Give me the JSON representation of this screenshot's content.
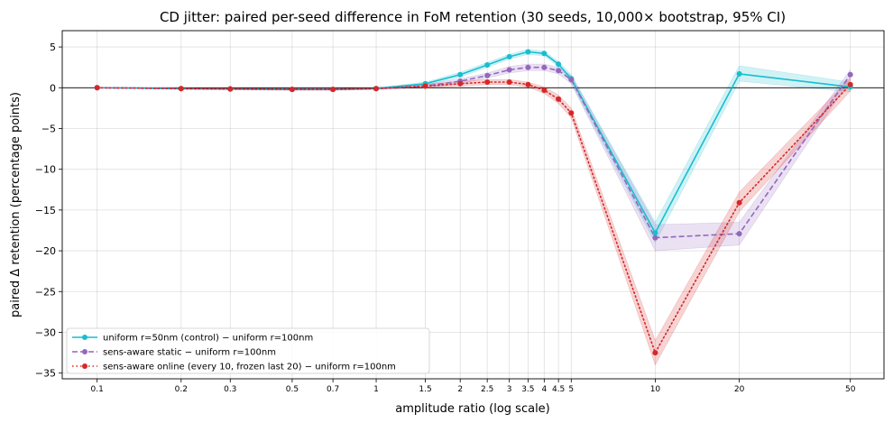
{
  "chart_data": {
    "type": "line",
    "title": "CD jitter: paired per-seed difference in FoM retention (30 seeds, 10,000× bootstrap, 95% CI)",
    "xlabel": "amplitude ratio (log scale)",
    "ylabel": "paired Δ retention (percentage points)",
    "x_scale": "log",
    "xlim": [
      0.075,
      66
    ],
    "ylim": [
      -35.7,
      7.0
    ],
    "grid": true,
    "legend_position": "lower-left",
    "x_ticks": [
      0.1,
      0.2,
      0.3,
      0.5,
      0.7,
      1,
      1.5,
      2,
      2.5,
      3,
      3.5,
      4,
      4.5,
      5,
      10,
      20,
      50
    ],
    "x_tick_labels": [
      "0.1",
      "0.2",
      "0.3",
      "0.5",
      "0.7",
      "1",
      "1.5",
      "2",
      "2.5",
      "3",
      "3.5",
      "4",
      "4.5",
      "5",
      "10",
      "20",
      "50"
    ],
    "y_ticks": [
      5,
      0,
      -5,
      -10,
      -15,
      -20,
      -25,
      -30,
      -35
    ],
    "y_tick_labels": [
      "5",
      "0",
      "−5",
      "−10",
      "−15",
      "−20",
      "−25",
      "−30",
      "−35"
    ],
    "reference_line": 0,
    "x": [
      0.1,
      0.2,
      0.3,
      0.5,
      0.7,
      1,
      1.5,
      2,
      2.5,
      3,
      3.5,
      4,
      4.5,
      5,
      10,
      20,
      50
    ],
    "series": [
      {
        "name": "uniform r=50nm (control) − uniform r=100nm",
        "color": "#17becf",
        "style": "solid",
        "values": [
          0,
          -0.1,
          -0.15,
          -0.2,
          -0.2,
          -0.1,
          0.5,
          1.6,
          2.8,
          3.8,
          4.4,
          4.2,
          2.9,
          1.1,
          -17.8,
          1.7,
          0.1
        ],
        "ci_low": [
          0,
          -0.2,
          -0.25,
          -0.3,
          -0.3,
          -0.2,
          0.3,
          1.3,
          2.5,
          3.5,
          4.1,
          3.9,
          2.6,
          0.6,
          -19.0,
          0.8,
          -0.5
        ],
        "ci_high": [
          0,
          0,
          -0.05,
          -0.1,
          -0.1,
          0,
          0.7,
          1.9,
          3.1,
          4.1,
          4.7,
          4.5,
          3.2,
          1.6,
          -16.5,
          2.7,
          0.7
        ]
      },
      {
        "name": "sens-aware static − uniform r=100nm",
        "color": "#9467bd",
        "style": "dashed",
        "values": [
          0,
          -0.1,
          -0.15,
          -0.2,
          -0.2,
          -0.1,
          0.2,
          0.8,
          1.5,
          2.2,
          2.5,
          2.5,
          2.1,
          1.0,
          -18.4,
          -17.9,
          1.6
        ],
        "ci_low": [
          0,
          -0.2,
          -0.25,
          -0.3,
          -0.3,
          -0.2,
          0,
          0.5,
          1.2,
          1.8,
          2.1,
          2.1,
          1.7,
          0.5,
          -20.0,
          -19.3,
          1.0
        ],
        "ci_high": [
          0,
          0,
          -0.05,
          -0.1,
          -0.1,
          0,
          0.4,
          1.1,
          1.8,
          2.6,
          2.9,
          2.9,
          2.5,
          1.5,
          -16.8,
          -16.5,
          2.2
        ]
      },
      {
        "name": "sens-aware online (every 10, frozen last 20) − uniform r=100nm",
        "color": "#d62728",
        "style": "dotted",
        "values": [
          0,
          -0.1,
          -0.15,
          -0.2,
          -0.2,
          -0.1,
          0.2,
          0.5,
          0.7,
          0.7,
          0.4,
          -0.3,
          -1.4,
          -3.1,
          -32.5,
          -14.1,
          0.4
        ],
        "ci_low": [
          0,
          -0.2,
          -0.25,
          -0.3,
          -0.3,
          -0.2,
          0,
          0.2,
          0.4,
          0.4,
          0.1,
          -0.7,
          -1.9,
          -3.7,
          -34.0,
          -15.2,
          -0.4
        ],
        "ci_high": [
          0,
          0,
          -0.05,
          -0.1,
          -0.1,
          0,
          0.4,
          0.8,
          1.0,
          1.0,
          0.7,
          0.1,
          -0.9,
          -2.5,
          -31.0,
          -12.8,
          1.2
        ]
      }
    ]
  }
}
